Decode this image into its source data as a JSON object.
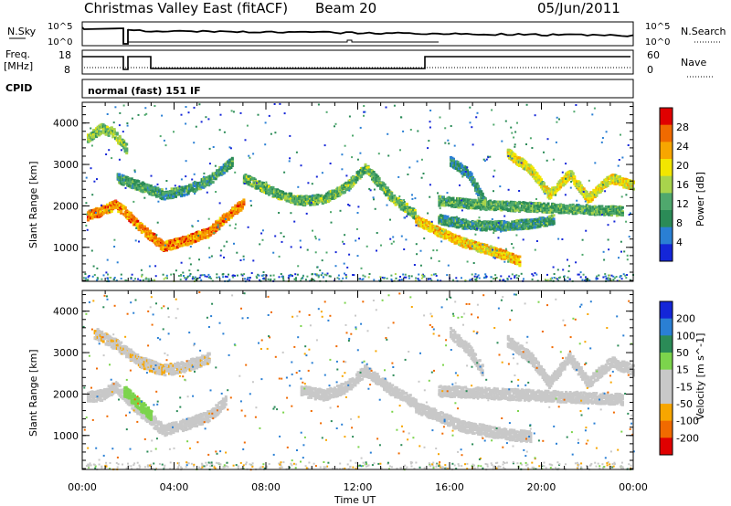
{
  "header": {
    "title": "Christmas Valley East (fitACF)",
    "beam": "Beam 20",
    "date": "05/Jun/2011"
  },
  "panels": {
    "nsky_label": "N.Sky",
    "nsky_ticks": [
      "10^5",
      "10^0"
    ],
    "nsearch_label": "N.Search",
    "nsearch_ticks": [
      "10^5",
      "10^0"
    ],
    "freq_label": "Freq.",
    "freq_unit": "[MHz]",
    "freq_ticks": [
      "18",
      "8"
    ],
    "nave_label": "Nave",
    "nave_ticks": [
      "60",
      "0"
    ],
    "cpid_label": "CPID",
    "cpid_value": "normal (fast) 151 IF"
  },
  "colors": {
    "background": "#ffffff",
    "trace": "#000000",
    "power_scale": [
      "#1426d8",
      "#2a7fd4",
      "#2b8b57",
      "#4fa86d",
      "#a8d44c",
      "#f2e600",
      "#f7a600",
      "#f06a00",
      "#e00000"
    ],
    "velocity_scale": [
      "#e00000",
      "#f06a00",
      "#f7a600",
      "#c8c8c8",
      "#c8c8c8",
      "#7cd44c",
      "#2b8b57",
      "#2a7fd4",
      "#1426d8"
    ]
  },
  "chart_data": [
    {
      "type": "heatmap",
      "name": "power",
      "ylabel": "Slant Range [km]",
      "yticks": [
        1000,
        2000,
        3000,
        4000
      ],
      "ylim": [
        180,
        4500
      ],
      "xlim": [
        0,
        24
      ],
      "colorbar_label": "Power [dB]",
      "colorbar_ticks": [
        4,
        8,
        12,
        16,
        20,
        24,
        28
      ],
      "colorbar_range": [
        0,
        32
      ],
      "bands": [
        {
          "x": [
            0.2,
            0.8,
            1.4,
            1.8,
            2.5,
            3.5,
            4.5,
            5.5,
            6.2,
            7.0
          ],
          "y": [
            1800,
            1900,
            2050,
            1900,
            1500,
            1050,
            1200,
            1400,
            1750,
            2100
          ],
          "value": 24
        },
        {
          "x": [
            0.2,
            0.8,
            1.3,
            1.9
          ],
          "y": [
            3650,
            3900,
            3800,
            3400
          ],
          "value": 14
        },
        {
          "x": [
            1.5,
            2.5,
            3.5,
            4.5,
            5.5,
            6.5
          ],
          "y": [
            2700,
            2500,
            2300,
            2400,
            2650,
            3100
          ],
          "value": 10
        },
        {
          "x": [
            7.0,
            8.5,
            9.5,
            10.5,
            11.5,
            12.3,
            13.5,
            14.5
          ],
          "y": [
            2700,
            2300,
            2150,
            2200,
            2500,
            2950,
            2200,
            1800
          ],
          "value": 12
        },
        {
          "x": [
            14.5,
            15.5,
            16.5,
            17.5,
            18.3,
            19.0
          ],
          "y": [
            1700,
            1400,
            1150,
            1000,
            850,
            700
          ],
          "value": 20
        },
        {
          "x": [
            15.5,
            16.5,
            17.5,
            18.5,
            19.5,
            20.5
          ],
          "y": [
            1700,
            1600,
            1550,
            1550,
            1600,
            1700
          ],
          "value": 9
        },
        {
          "x": [
            16.0,
            16.8,
            17.5
          ],
          "y": [
            3100,
            2800,
            2100
          ],
          "value": 8
        },
        {
          "x": [
            18.5,
            19.5,
            20.3,
            21.2,
            22.0,
            23.0,
            24.0
          ],
          "y": [
            3300,
            2900,
            2300,
            2800,
            2200,
            2700,
            2500
          ],
          "value": 18
        },
        {
          "x": [
            15.5,
            17.5,
            19.5,
            21.5,
            23.5
          ],
          "y": [
            2150,
            2050,
            2000,
            1950,
            1900
          ],
          "value": 11
        }
      ]
    },
    {
      "type": "heatmap",
      "name": "velocity",
      "ylabel": "Slant Range [km]",
      "yticks": [
        1000,
        2000,
        3000,
        4000
      ],
      "ylim": [
        180,
        4500
      ],
      "xlim": [
        0,
        24
      ],
      "colorbar_label": "Velocity [m s^-1]",
      "colorbar_ticks": [
        -200,
        -100,
        -50,
        -15,
        15,
        50,
        100,
        200
      ],
      "xlabel": "Time UT",
      "xticks": [
        "00:00",
        "04:00",
        "08:00",
        "12:00",
        "16:00",
        "20:00",
        "00:00"
      ],
      "bands": [
        {
          "x": [
            0.2,
            0.8,
            1.4,
            1.8,
            2.5,
            3.5,
            4.5,
            5.5,
            6.2
          ],
          "y": [
            1950,
            2000,
            2200,
            2000,
            1600,
            1150,
            1300,
            1500,
            1850
          ],
          "value": -30
        },
        {
          "x": [
            0.5,
            1.5,
            2.5,
            3.5,
            4.5,
            5.5
          ],
          "y": [
            3500,
            3200,
            2800,
            2600,
            2700,
            2900
          ],
          "value": -40
        },
        {
          "x": [
            1.8,
            2.4,
            3.0
          ],
          "y": [
            2100,
            1800,
            1500
          ],
          "value": 30
        },
        {
          "x": [
            9.5,
            10.5,
            11.5,
            12.3,
            13.5,
            14.5
          ],
          "y": [
            2100,
            2000,
            2200,
            2600,
            2100,
            1800
          ],
          "value": 0
        },
        {
          "x": [
            14.5,
            15.5,
            16.5,
            17.5,
            18.5,
            19.5
          ],
          "y": [
            1700,
            1500,
            1250,
            1150,
            1050,
            1000
          ],
          "value": 0
        },
        {
          "x": [
            15.5,
            17.5,
            19.5,
            21.5,
            23.5
          ],
          "y": [
            2100,
            2050,
            2000,
            1950,
            1900
          ],
          "value": 0
        },
        {
          "x": [
            18.5,
            19.5,
            20.3,
            21.2,
            22.0,
            23.0,
            24.0
          ],
          "y": [
            3300,
            2900,
            2300,
            2900,
            2300,
            2800,
            2600
          ],
          "value": 0
        },
        {
          "x": [
            16.0,
            16.8,
            17.4
          ],
          "y": [
            3500,
            3100,
            2600
          ],
          "value": 0
        }
      ]
    }
  ]
}
